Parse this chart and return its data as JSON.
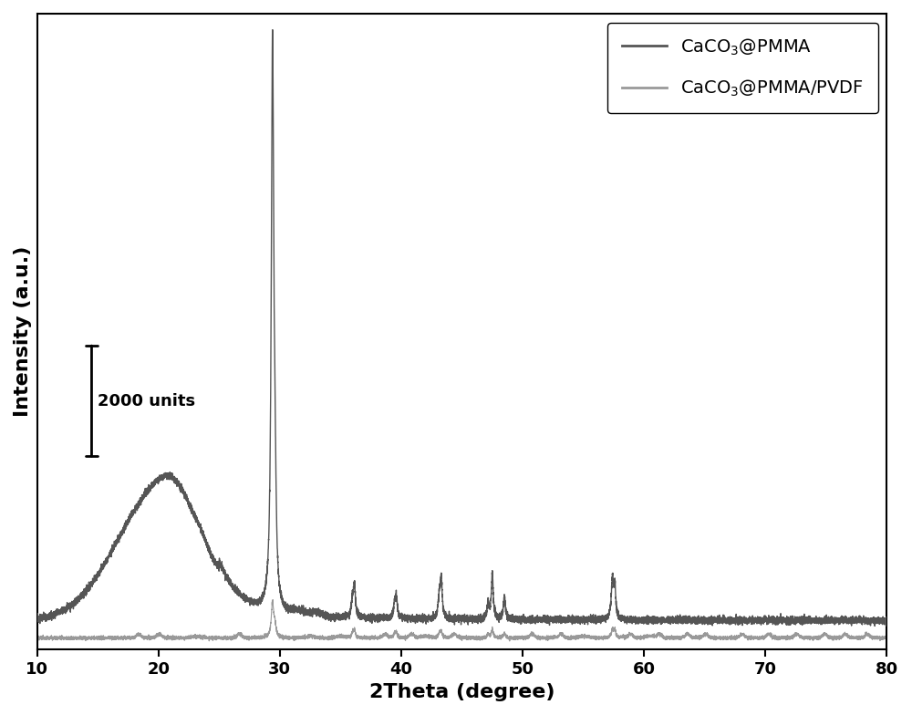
{
  "xlabel": "2Theta (degree)",
  "ylabel": "Intensity (a.u.)",
  "xlim": [
    10,
    80
  ],
  "ylim": [
    0,
    11000
  ],
  "x_ticks": [
    10,
    20,
    30,
    40,
    50,
    60,
    70,
    80
  ],
  "line1_color": "#555555",
  "line2_color": "#999999",
  "legend_label1": "CaCO$_3$@PMMA",
  "legend_label2": "CaCO$_3$@PMMA/PVDF",
  "scalebar_label": "2000 units",
  "scalebar_height": 2000,
  "background_color": "#ffffff",
  "line1_lw": 1.0,
  "line2_lw": 0.8,
  "axis_fontsize": 16,
  "legend_fontsize": 14,
  "tick_fontsize": 13
}
